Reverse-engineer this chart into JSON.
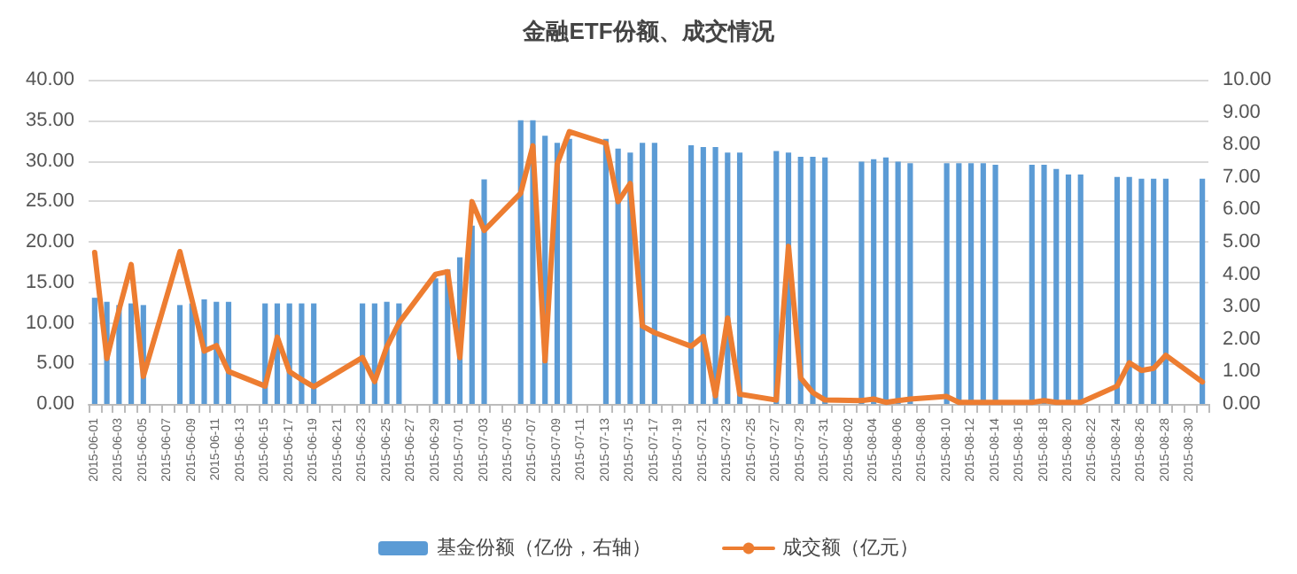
{
  "chart_data": {
    "type": "bar",
    "title": "金融ETF份额、成交情况",
    "categories": [
      "2015-06-01",
      null,
      "2015-06-03",
      null,
      "2015-06-05",
      null,
      "2015-06-07",
      null,
      "2015-06-09",
      null,
      "2015-06-11",
      null,
      "2015-06-13",
      null,
      "2015-06-15",
      null,
      "2015-06-17",
      null,
      "2015-06-19",
      null,
      "2015-06-21",
      null,
      "2015-06-23",
      null,
      "2015-06-25",
      null,
      "2015-06-27",
      null,
      "2015-06-29",
      null,
      "2015-07-01",
      null,
      "2015-07-03",
      null,
      "2015-07-05",
      null,
      "2015-07-07",
      null,
      "2015-07-09",
      null,
      "2015-07-11",
      null,
      "2015-07-13",
      null,
      "2015-07-15",
      null,
      "2015-07-17",
      null,
      "2015-07-19",
      null,
      "2015-07-21",
      null,
      "2015-07-23",
      null,
      "2015-07-25",
      null,
      "2015-07-27",
      null,
      "2015-07-29",
      null,
      "2015-07-31",
      null,
      "2015-08-02",
      null,
      "2015-08-04",
      null,
      "2015-08-06",
      null,
      "2015-08-08",
      null,
      "2015-08-10",
      null,
      "2015-08-12",
      null,
      "2015-08-14",
      null,
      "2015-08-16",
      null,
      "2015-08-18",
      null,
      "2015-08-20",
      null,
      "2015-08-22",
      null,
      "2015-08-24",
      null,
      "2015-08-26",
      null,
      "2015-08-28",
      null,
      "2015-08-30",
      null
    ],
    "series": [
      {
        "name": "基金份额（亿份，右轴）",
        "color": "#5b9bd5",
        "values": [
          13.1,
          12.6,
          12.2,
          12.4,
          12.2,
          null,
          null,
          12.2,
          12.4,
          12.9,
          12.6,
          12.6,
          null,
          null,
          12.4,
          12.4,
          12.4,
          12.4,
          12.4,
          null,
          null,
          null,
          12.4,
          12.4,
          12.6,
          12.4,
          null,
          null,
          15.5,
          16.6,
          18.1,
          22,
          27.7,
          null,
          null,
          35,
          35,
          33.1,
          32.2,
          32.7,
          null,
          null,
          32.7,
          31.5,
          31.0,
          32.2,
          32.2,
          null,
          null,
          31.9,
          31.7,
          31.7,
          31.0,
          31.0,
          null,
          null,
          31.2,
          31.0,
          30.5,
          30.5,
          30.4,
          null,
          null,
          29.9,
          30.2,
          30.4,
          29.9,
          29.7,
          null,
          null,
          29.7,
          29.7,
          29.7,
          29.7,
          29.5,
          null,
          null,
          29.5,
          29.5,
          29.0,
          28.3,
          28.3,
          null,
          null,
          28.0,
          28.0,
          27.8,
          27.8,
          27.8,
          null,
          null,
          27.8
        ]
      },
      {
        "name": "成交额（亿元）",
        "type": "line",
        "axis": "y2",
        "color": "#ed7d31",
        "values": [
          4.67,
          1.4,
          2.9,
          4.3,
          0.85,
          null,
          null,
          4.7,
          3.2,
          1.63,
          1.8,
          1.0,
          null,
          null,
          0.55,
          2.06,
          1.0,
          0.75,
          0.53,
          null,
          null,
          null,
          1.43,
          0.69,
          1.76,
          2.5,
          null,
          null,
          4.0,
          4.08,
          1.43,
          6.24,
          5.35,
          null,
          null,
          6.5,
          7.96,
          1.33,
          7.4,
          8.4,
          null,
          null,
          8.04,
          6.24,
          6.8,
          2.4,
          2.2,
          null,
          null,
          1.78,
          2.08,
          0.25,
          2.65,
          0.3,
          null,
          null,
          0.12,
          4.86,
          0.8,
          0.35,
          0.12,
          null,
          null,
          0.1,
          0.15,
          0.05,
          0.1,
          0.15,
          null,
          null,
          0.23,
          0.05,
          0.05,
          0.05,
          0.05,
          null,
          null,
          0.05,
          0.1,
          0.05,
          0.05,
          0.05,
          null,
          null,
          0.55,
          1.27,
          1.03,
          1.1,
          1.5,
          null,
          null,
          0.68
        ]
      }
    ],
    "ylim": [
      0,
      40
    ],
    "yticks": [
      {
        "value": 0,
        "label": "0.00"
      },
      {
        "value": 5,
        "label": "5.00"
      },
      {
        "value": 10,
        "label": "10.00"
      },
      {
        "value": 15,
        "label": "15.00"
      },
      {
        "value": 20,
        "label": "20.00"
      },
      {
        "value": 25,
        "label": "25.00"
      },
      {
        "value": 30,
        "label": "30.00"
      },
      {
        "value": 35,
        "label": "35.00"
      },
      {
        "value": 40,
        "label": "40.00"
      }
    ],
    "y2lim": [
      0,
      10
    ],
    "y2ticks": [
      {
        "value": 0,
        "label": "0.00"
      },
      {
        "value": 1,
        "label": "1.00"
      },
      {
        "value": 2,
        "label": "2.00"
      },
      {
        "value": 3,
        "label": "3.00"
      },
      {
        "value": 4,
        "label": "4.00"
      },
      {
        "value": 5,
        "label": "5.00"
      },
      {
        "value": 6,
        "label": "6.00"
      },
      {
        "value": 7,
        "label": "7.00"
      },
      {
        "value": 8,
        "label": "8.00"
      },
      {
        "value": 9,
        "label": "9.00"
      },
      {
        "value": 10,
        "label": "10.00"
      }
    ],
    "grid": "y",
    "legend": "bottom",
    "marker": "none",
    "line_style": "solid"
  }
}
